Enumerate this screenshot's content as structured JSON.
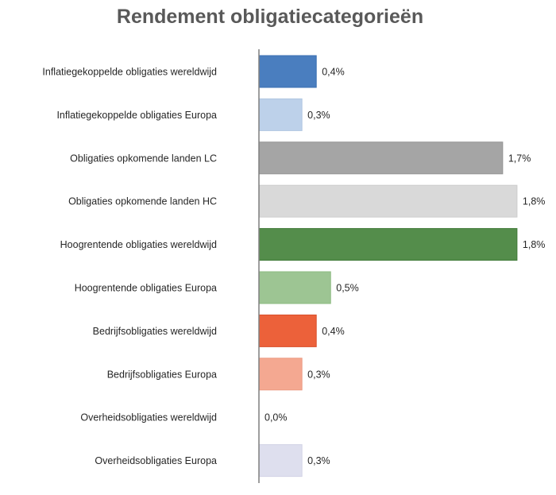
{
  "chart_data": {
    "type": "bar",
    "orientation": "horizontal",
    "title": "Rendement obligatiecategorieën",
    "xlabel": "",
    "ylabel": "",
    "unit": "%",
    "xlim": [
      0,
      1.8
    ],
    "grid": false,
    "legend": "none",
    "categories": [
      "Inflatiegekoppelde obligaties wereldwijd",
      "Inflatiegekoppelde obligaties Europa",
      "Obligaties opkomende landen LC",
      "Obligaties opkomende landen HC",
      "Hoogrentende obligaties wereldwijd",
      "Hoogrentende obligaties Europa",
      "Bedrijfsobligaties wereldwijd",
      "Bedrijfsobligaties Europa",
      "Overheidsobligaties wereldwijd",
      "Overheidsobligaties Europa"
    ],
    "values": [
      0.4,
      0.3,
      1.7,
      1.8,
      1.8,
      0.5,
      0.4,
      0.3,
      0.0,
      0.3
    ],
    "labels": [
      "0,4%",
      "0,3%",
      "1,7%",
      "1,8%",
      "1,8%",
      "0,5%",
      "0,4%",
      "0,3%",
      "0,0%",
      "0,3%"
    ],
    "colors": [
      "#4a7ebf",
      "#bdd1ea",
      "#a5a5a5",
      "#d9d9d9",
      "#548d4b",
      "#9dc593",
      "#ec613a",
      "#f4a891",
      "#ffffff",
      "#dedfee"
    ],
    "borders": [
      "#3a6fb0",
      "#b0c6e2",
      "#959595",
      "#cccccc",
      "#3f7a37",
      "#8dbb82",
      "#d94f2a",
      "#eb9a82",
      "#ffffff",
      "#d2d3e6"
    ]
  }
}
